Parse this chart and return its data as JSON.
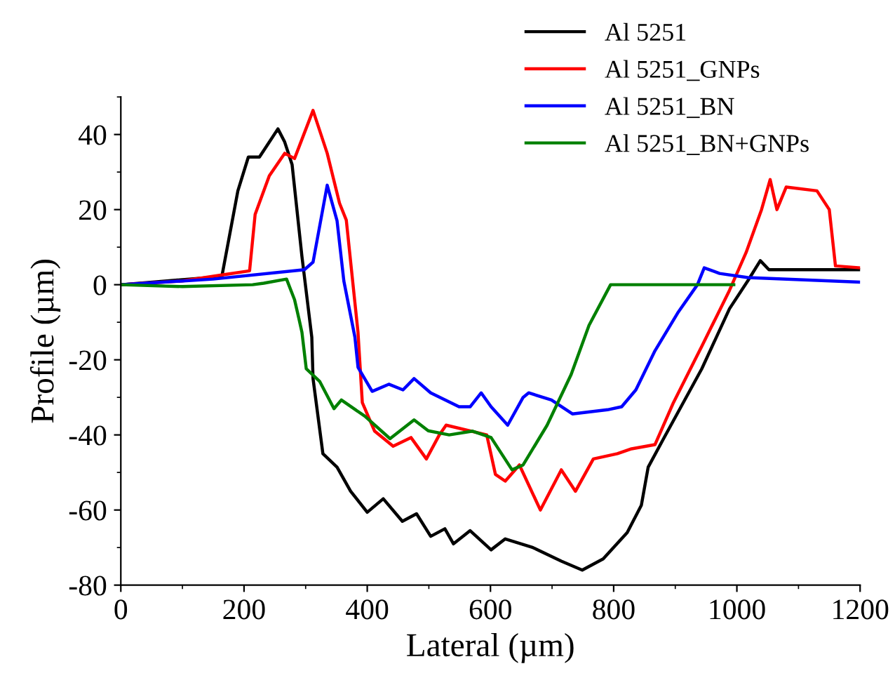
{
  "chart_data": {
    "type": "line",
    "xlabel": "Lateral (µm)",
    "ylabel": "Profile (µm)",
    "xlim": [
      0,
      1200
    ],
    "ylim": [
      -80,
      50
    ],
    "xticks": [
      0,
      200,
      400,
      600,
      800,
      1000,
      1200
    ],
    "yticks": [
      -80,
      -60,
      -40,
      -20,
      0,
      20,
      40
    ],
    "grid": false,
    "legend": "top right",
    "marker": "none",
    "line_style": "solid",
    "series": [
      {
        "name": "Al 5251",
        "color": "#000000",
        "x": [
          0,
          164,
          190,
          207,
          225,
          237,
          255,
          266,
          278,
          294,
          310,
          312,
          328,
          351,
          373,
          400,
          426,
          457,
          480,
          503,
          526,
          540,
          567,
          601,
          624,
          669,
          715,
          749,
          783,
          822,
          845,
          856,
          881,
          943,
          988,
          1018,
          1038,
          1052,
          1100,
          1200
        ],
        "values": [
          0,
          2.2,
          25,
          34,
          34,
          37,
          41.5,
          38,
          32,
          7.5,
          -14,
          -25,
          -45,
          -48.6,
          -55,
          -60.6,
          -57,
          -63,
          -61,
          -67,
          -65,
          -69,
          -65.5,
          -70.6,
          -67.7,
          -70,
          -73.6,
          -76,
          -73,
          -66,
          -58.7,
          -48.6,
          -41,
          -22.4,
          -6.4,
          1.1,
          6.4,
          4,
          4,
          4
        ]
      },
      {
        "name": "Al 5251_GNPs",
        "color": "#ff0000",
        "x": [
          0,
          100,
          164,
          209,
          218,
          241,
          266,
          282,
          312,
          335,
          355,
          366,
          385,
          392,
          412,
          442,
          471,
          496,
          517,
          528,
          594,
          608,
          624,
          647,
          681,
          715,
          738,
          767,
          806,
          829,
          867,
          897,
          943,
          988,
          1015,
          1040,
          1054,
          1065,
          1080,
          1130,
          1150,
          1160,
          1200
        ],
        "values": [
          0,
          1,
          2.6,
          3.7,
          18.7,
          29,
          35,
          33.6,
          46.4,
          35,
          21.7,
          17.2,
          -12.7,
          -31.4,
          -39,
          -43,
          -40.7,
          -46.4,
          -40,
          -37.4,
          -40,
          -50.5,
          -52.3,
          -48,
          -60,
          -49.3,
          -55,
          -46.4,
          -45,
          -43.7,
          -42.6,
          -31.4,
          -16.4,
          -1.5,
          8.6,
          20,
          28,
          20,
          26,
          25,
          20,
          5,
          4.5
        ]
      },
      {
        "name": "Al 5251_BN",
        "color": "#0000ff",
        "x": [
          0,
          150,
          298,
          312,
          335,
          351,
          362,
          380,
          385,
          408,
          435,
          458,
          476,
          503,
          549,
          567,
          585,
          601,
          628,
          653,
          662,
          699,
          733,
          790,
          813,
          836,
          867,
          904,
          936,
          947,
          972,
          1018,
          1198
        ],
        "values": [
          0,
          1.5,
          4,
          6,
          26.5,
          17,
          1,
          -14,
          -22,
          -28.4,
          -26.5,
          -28,
          -25,
          -28.8,
          -32.5,
          -32.5,
          -28.8,
          -32.5,
          -37.4,
          -30,
          -28.8,
          -30.7,
          -34.4,
          -33.3,
          -32.5,
          -28,
          -17.6,
          -7.5,
          0,
          4.5,
          3,
          1.9,
          0.7
        ]
      },
      {
        "name": "Al 5251_BN+GNPs",
        "color": "#008000",
        "x": [
          0,
          100,
          214,
          232,
          269,
          282,
          289,
          294,
          301,
          323,
          346,
          358,
          396,
          437,
          476,
          499,
          533,
          571,
          601,
          635,
          653,
          692,
          731,
          760,
          795,
          995
        ],
        "values": [
          0,
          -0.5,
          0,
          0.4,
          1.5,
          -4,
          -9,
          -12.7,
          -22.4,
          -25.8,
          -33,
          -30.7,
          -35,
          -41,
          -36,
          -38.9,
          -40,
          -39,
          -40.7,
          -49.3,
          -48,
          -37.4,
          -23.9,
          -10.8,
          0,
          0
        ]
      }
    ]
  }
}
